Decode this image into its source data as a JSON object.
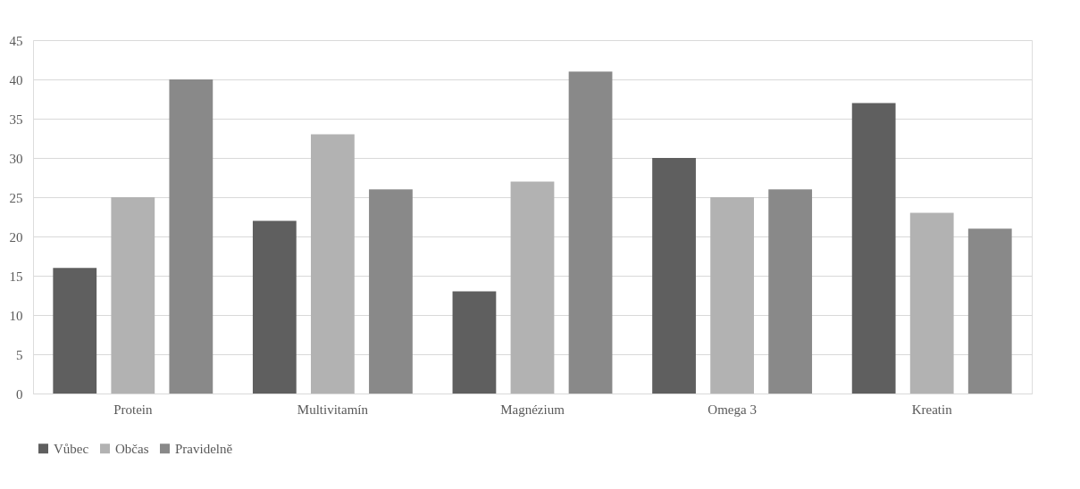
{
  "chart_data": {
    "type": "bar",
    "categories": [
      "Protein",
      "Multivitamín",
      "Magnézium",
      "Omega 3",
      "Kreatin"
    ],
    "series": [
      {
        "name": "Vůbec",
        "color": "#5f5f5f",
        "values": [
          16,
          22,
          13,
          30,
          37
        ]
      },
      {
        "name": "Občas",
        "color": "#b2b2b2",
        "values": [
          25,
          33,
          27,
          25,
          23
        ]
      },
      {
        "name": "Pravidelně",
        "color": "#898989",
        "values": [
          40,
          26,
          41,
          26,
          21
        ]
      }
    ],
    "ylim": [
      0,
      45
    ],
    "yticks": [
      0,
      5,
      10,
      15,
      20,
      25,
      30,
      35,
      40,
      45
    ],
    "grid": "y",
    "legend": "bottom"
  }
}
